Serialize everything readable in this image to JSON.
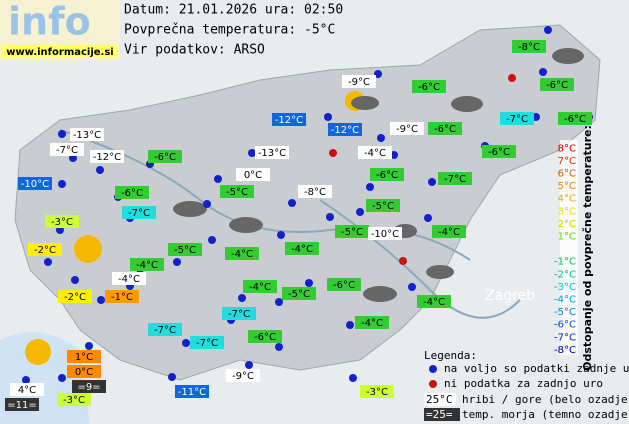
{
  "header": {
    "logo": "info",
    "site": "www.informacije.si",
    "date_line": "Datum: 21.01.2026 ura: 02:50",
    "avg_line": "Povprečna temperatura: -5°C",
    "source_line": "Vir podatkov: ARSO"
  },
  "map_labels": [
    "Zagreb"
  ],
  "stations": [
    {
      "label": "-8°C",
      "bg": "#33cc33"
    },
    {
      "label": "-9°C",
      "bg": "#ffffff"
    },
    {
      "label": "-6°C",
      "bg": "#33cc33"
    },
    {
      "label": "-6°C",
      "bg": "#33cc33"
    },
    {
      "label": "-12°C",
      "bg": "#1166dd"
    },
    {
      "label": "-12°C",
      "bg": "#1166dd"
    },
    {
      "label": "-9°C",
      "bg": "#ffffff"
    },
    {
      "label": "-6°C",
      "bg": "#33cc33"
    },
    {
      "label": "-7°C",
      "bg": "#22dddd"
    },
    {
      "label": "-6°C",
      "bg": "#33cc33"
    },
    {
      "label": "-13°C",
      "bg": "#ffffff"
    },
    {
      "label": "-7°C",
      "bg": "#ffffff"
    },
    {
      "label": "-12°C",
      "bg": "#ffffff"
    },
    {
      "label": "-6°C",
      "bg": "#33cc33"
    },
    {
      "label": "-13°C",
      "bg": "#ffffff"
    },
    {
      "label": "-4°C",
      "bg": "#ffffff"
    },
    {
      "label": "-6°C",
      "bg": "#33cc33"
    },
    {
      "label": "-10°C",
      "bg": "#1166dd"
    },
    {
      "label": "0°C",
      "bg": "#ffffff"
    },
    {
      "label": "-6°C",
      "bg": "#33cc33"
    },
    {
      "label": "-6°C",
      "bg": "#33cc33"
    },
    {
      "label": "-5°C",
      "bg": "#33cc33"
    },
    {
      "label": "-8°C",
      "bg": "#ffffff"
    },
    {
      "label": "-7°C",
      "bg": "#33cc33"
    },
    {
      "label": "-7°C",
      "bg": "#22dddd"
    },
    {
      "label": "-5°C",
      "bg": "#33cc33"
    },
    {
      "label": "-3°C",
      "bg": "#ccff33"
    },
    {
      "label": "-5°C",
      "bg": "#33cc33"
    },
    {
      "label": "-10°C",
      "bg": "#ffffff"
    },
    {
      "label": "-4°C",
      "bg": "#33cc33"
    },
    {
      "label": "-2°C",
      "bg": "#ffee00"
    },
    {
      "label": "-5°C",
      "bg": "#33cc33"
    },
    {
      "label": "-4°C",
      "bg": "#33cc33"
    },
    {
      "label": "-4°C",
      "bg": "#33cc33"
    },
    {
      "label": "-4°C",
      "bg": "#33cc33"
    },
    {
      "label": "-4°C",
      "bg": "#ffffff"
    },
    {
      "label": "-4°C",
      "bg": "#33cc33"
    },
    {
      "label": "-6°C",
      "bg": "#33cc33"
    },
    {
      "label": "-2°C",
      "bg": "#ffee00"
    },
    {
      "label": "-1°C",
      "bg": "#ff9900"
    },
    {
      "label": "-5°C",
      "bg": "#33cc33"
    },
    {
      "label": "-4°C",
      "bg": "#33cc33"
    },
    {
      "label": "-7°C",
      "bg": "#22dddd"
    },
    {
      "label": "-4°C",
      "bg": "#33cc33"
    },
    {
      "label": "-7°C",
      "bg": "#22dddd"
    },
    {
      "label": "-7°C",
      "bg": "#22dddd"
    },
    {
      "label": "-6°C",
      "bg": "#33cc33"
    },
    {
      "label": "1°C",
      "bg": "#ff8800"
    },
    {
      "label": "0°C",
      "bg": "#ff8800"
    },
    {
      "label": "=9=",
      "bg": "#333333"
    },
    {
      "label": "-9°C",
      "bg": "#ffffff"
    },
    {
      "label": "4°C",
      "bg": "#ffffff"
    },
    {
      "label": "-3°C",
      "bg": "#ccff33"
    },
    {
      "label": "=11=",
      "bg": "#333333"
    },
    {
      "label": "-11°C",
      "bg": "#1166dd"
    },
    {
      "label": "-3°C",
      "bg": "#ccff33"
    }
  ],
  "scale": {
    "title": "Odstopanje od povprečne temperature:",
    "steps": [
      {
        "label": "8°C",
        "color": "#ff0000"
      },
      {
        "label": "7°C",
        "color": "#ff3300"
      },
      {
        "label": "6°C",
        "color": "#ff6600"
      },
      {
        "label": "5°C",
        "color": "#ff9900"
      },
      {
        "label": "4°C",
        "color": "#ffcc00"
      },
      {
        "label": "3°C",
        "color": "#ffff00"
      },
      {
        "label": "2°C",
        "color": "#ccff00"
      },
      {
        "label": "1°C",
        "color": "#66ff00"
      },
      {
        "label": null,
        "color": "#22ee22"
      },
      {
        "label": "-1°C",
        "color": "#00ee66"
      },
      {
        "label": "-2°C",
        "color": "#00ddaa"
      },
      {
        "label": "-3°C",
        "color": "#00dddd"
      },
      {
        "label": "-4°C",
        "color": "#00bbff"
      },
      {
        "label": "-5°C",
        "color": "#0099ff"
      },
      {
        "label": "-6°C",
        "color": "#0066ff"
      },
      {
        "label": "-7°C",
        "color": "#0033ee"
      },
      {
        "label": "-8°C",
        "color": "#0000cc"
      }
    ]
  },
  "legend": {
    "title": "Legenda:",
    "available": "na voljo so podatki zadnje ure",
    "missing": "ni podatka za zadnjo uro",
    "hill_sample": "25°C",
    "hill_text": "hribi / gore (belo ozadje)",
    "sea_sample": "=25=",
    "sea_text": "temp. morja (temno ozadje)"
  }
}
